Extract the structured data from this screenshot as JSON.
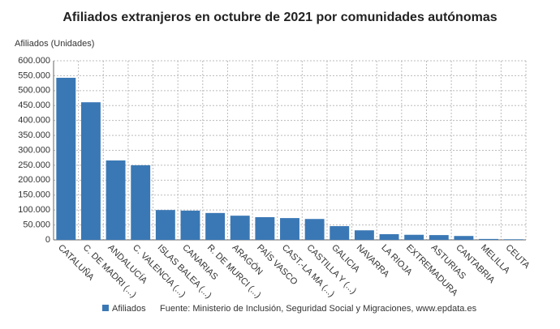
{
  "chart_data": {
    "type": "bar",
    "title": "Afiliados extranjeros en octubre de 2021 por comunidades autónomas",
    "y_label": "Afiliados (Unidades)",
    "source": "Fuente: Ministerio de Inclusión, Seguridad Social y Migraciones, www.epdata.es",
    "categories": [
      "CATALUÑA",
      "C. DE MADRI (...)",
      "ANDALUCÍA",
      "C. VALENCIA (...)",
      "ISLAS BALEA (...)",
      "CANARIAS",
      "R. DE MURCI (...)",
      "ARAGÓN",
      "PAÍS VASCO",
      "CAST.-LA MA (...)",
      "CASTILLA Y (...)",
      "GALICIA",
      "NAVARRA",
      "LA RIOJA",
      "EXTREMADURA",
      "ASTURIAS",
      "CANTABRIA",
      "MELILLA",
      "CEUTA"
    ],
    "series": [
      {
        "name": "Afiliados",
        "color": "#3a78b5",
        "values": [
          543000,
          461000,
          266000,
          250000,
          100000,
          98000,
          90000,
          81000,
          76000,
          73000,
          70000,
          46000,
          32000,
          19000,
          17000,
          16000,
          13000,
          3000,
          2000
        ]
      }
    ],
    "ylim": [
      0,
      600000
    ],
    "yticks": [
      0,
      {
        "value": 50000,
        "label": "50.000"
      },
      {
        "value": 100000,
        "label": "100.000"
      },
      {
        "value": 150000,
        "label": "150.000"
      },
      {
        "value": 200000,
        "label": "200.000"
      },
      {
        "value": 250000,
        "label": "250.000"
      },
      {
        "value": 300000,
        "label": "300.000"
      },
      {
        "value": 350000,
        "label": "350.000"
      },
      {
        "value": 400000,
        "label": "400.000"
      },
      {
        "value": 450000,
        "label": "450.000"
      },
      {
        "value": 500000,
        "label": "500.000"
      },
      {
        "value": 550000,
        "label": "550.000"
      },
      {
        "value": 600000,
        "label": "600.000"
      }
    ],
    "grid": true
  }
}
